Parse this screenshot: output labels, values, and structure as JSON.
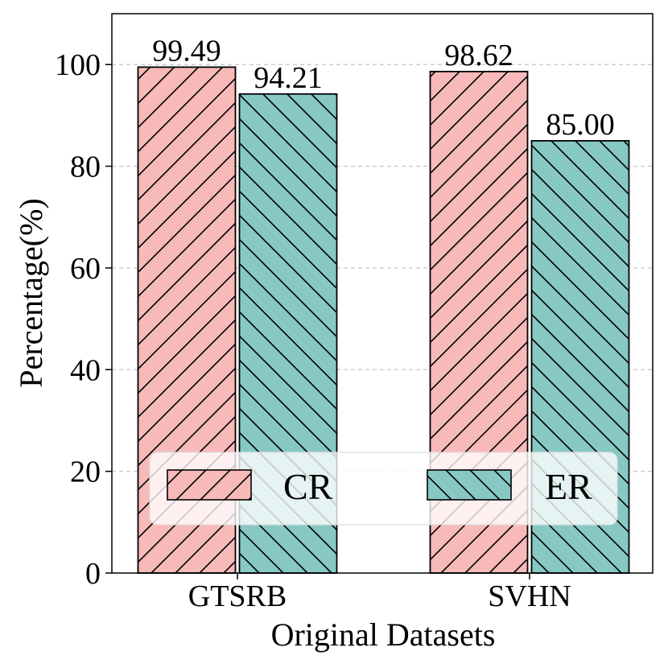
{
  "chart_data": {
    "type": "bar",
    "xlabel": "Original Datasets",
    "ylabel": "Percentage(%)",
    "ylim": [
      0,
      110
    ],
    "yticks": [
      0,
      20,
      40,
      60,
      80,
      100
    ],
    "categories": [
      "GTSRB",
      "SVHN"
    ],
    "grid": "horizontal dashed",
    "legend_position": "lower-center",
    "series": [
      {
        "name": "CR",
        "values": [
          99.49,
          98.62
        ],
        "labels": [
          "99.49",
          "98.62"
        ],
        "color": "#f8b9b9",
        "hatch": "forward-diagonal"
      },
      {
        "name": "ER",
        "values": [
          94.21,
          85.0
        ],
        "labels": [
          "94.21",
          "85.00"
        ],
        "color": "#88c8c4",
        "hatch": "back-diagonal"
      }
    ]
  }
}
